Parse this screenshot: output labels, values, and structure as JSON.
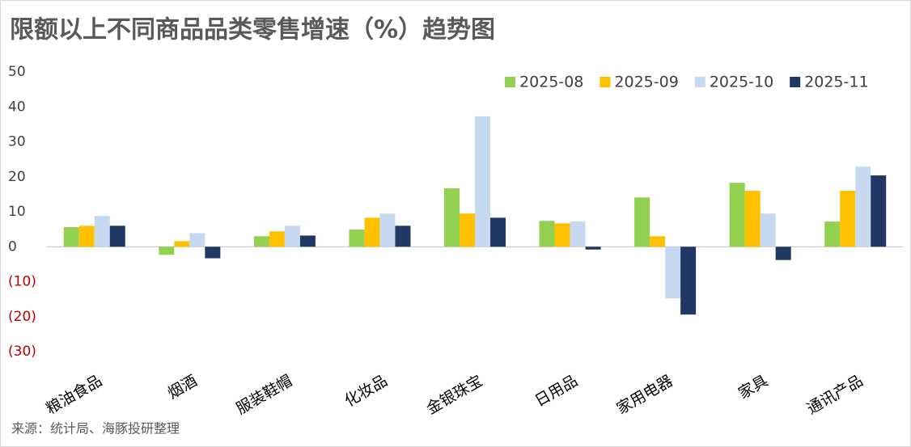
{
  "chart_data": {
    "type": "bar",
    "title": "限额以上不同商品品类零售增速（%）趋势图",
    "source": "来源：统计局、海豚投研整理",
    "categories": [
      "粮油食品",
      "烟酒",
      "服装鞋帽",
      "化妆品",
      "金银珠宝",
      "日用品",
      "家用电器",
      "家具",
      "通讯产品"
    ],
    "series": [
      {
        "name": "2025-08",
        "color": "#92d050",
        "values": [
          5.6,
          -2.3,
          3.0,
          4.9,
          16.7,
          7.4,
          14.1,
          18.3,
          7.2
        ]
      },
      {
        "name": "2025-09",
        "color": "#ffc000",
        "values": [
          6.0,
          1.6,
          4.4,
          8.3,
          9.5,
          6.7,
          3.0,
          16.0,
          16.0
        ]
      },
      {
        "name": "2025-10",
        "color": "#c6d9f1",
        "values": [
          8.8,
          3.9,
          6.0,
          9.5,
          37.3,
          7.2,
          -14.8,
          9.5,
          22.9
        ]
      },
      {
        "name": "2025-11",
        "color": "#203864",
        "values": [
          6.0,
          -3.3,
          3.2,
          6.0,
          8.3,
          -0.8,
          -19.4,
          -3.8,
          20.4
        ]
      }
    ],
    "ylim": [
      -30,
      50
    ],
    "yticks": [
      50,
      40,
      30,
      20,
      10,
      0,
      {
        "value": -10,
        "label": "(10)"
      },
      {
        "value": -20,
        "label": "(20)"
      },
      {
        "value": -30,
        "label": "(30)"
      }
    ],
    "grid": false
  }
}
